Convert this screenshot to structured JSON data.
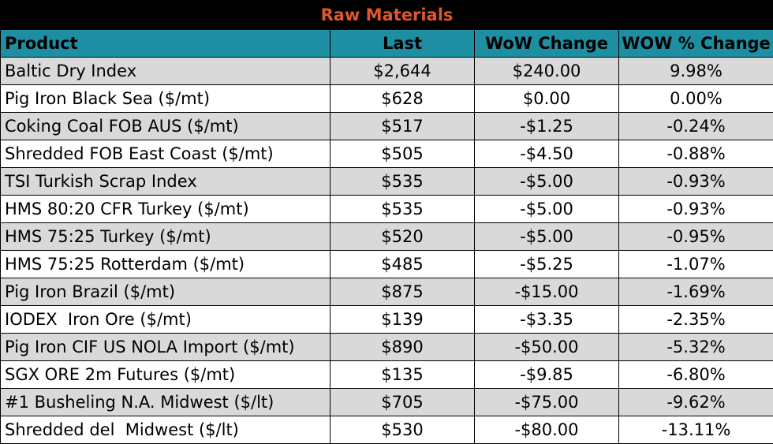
{
  "title": "Raw Materials",
  "columns": {
    "product": "Product",
    "last": "Last",
    "wow_change": "WoW Change",
    "wow_pct_change": "WOW % Change"
  },
  "rows": [
    {
      "product": "Baltic Dry Index",
      "last": "$2,644",
      "wow_change": "$240.00",
      "wow_pct_change": "9.98%"
    },
    {
      "product": "Pig Iron Black Sea ($/mt)",
      "last": "$628",
      "wow_change": "$0.00",
      "wow_pct_change": "0.00%"
    },
    {
      "product": "Coking Coal FOB AUS ($/mt)",
      "last": "$517",
      "wow_change": "-$1.25",
      "wow_pct_change": "-0.24%"
    },
    {
      "product": "Shredded FOB East Coast ($/mt)",
      "last": "$505",
      "wow_change": "-$4.50",
      "wow_pct_change": "-0.88%"
    },
    {
      "product": "TSI Turkish Scrap Index",
      "last": "$535",
      "wow_change": "-$5.00",
      "wow_pct_change": "-0.93%"
    },
    {
      "product": "HMS 80:20 CFR Turkey ($/mt)",
      "last": "$535",
      "wow_change": "-$5.00",
      "wow_pct_change": "-0.93%"
    },
    {
      "product": "HMS 75:25 Turkey ($/mt)",
      "last": "$520",
      "wow_change": "-$5.00",
      "wow_pct_change": "-0.95%"
    },
    {
      "product": "HMS 75:25 Rotterdam ($/mt)",
      "last": "$485",
      "wow_change": "-$5.25",
      "wow_pct_change": "-1.07%"
    },
    {
      "product": "Pig Iron Brazil ($/mt)",
      "last": "$875",
      "wow_change": "-$15.00",
      "wow_pct_change": "-1.69%"
    },
    {
      "product": "IODEX  Iron Ore ($/mt)",
      "last": "$139",
      "wow_change": "-$3.35",
      "wow_pct_change": "-2.35%"
    },
    {
      "product": "Pig Iron CIF US NOLA Import ($/mt)",
      "last": "$890",
      "wow_change": "-$50.00",
      "wow_pct_change": "-5.32%"
    },
    {
      "product": "SGX ORE 2m Futures ($/mt)",
      "last": "$135",
      "wow_change": "-$9.85",
      "wow_pct_change": "-6.80%"
    },
    {
      "product": "#1 Busheling N.A. Midwest ($/lt)",
      "last": "$705",
      "wow_change": "-$75.00",
      "wow_pct_change": "-9.62%"
    },
    {
      "product": "Shredded del  Midwest ($/lt)",
      "last": "$530",
      "wow_change": "-$80.00",
      "wow_pct_change": "-13.11%"
    }
  ],
  "colors": {
    "title_bg": "#000000",
    "title_text": "#e0572a",
    "header_bg": "#1e8fa3",
    "row_alt_bg": "#d9d9d9"
  }
}
